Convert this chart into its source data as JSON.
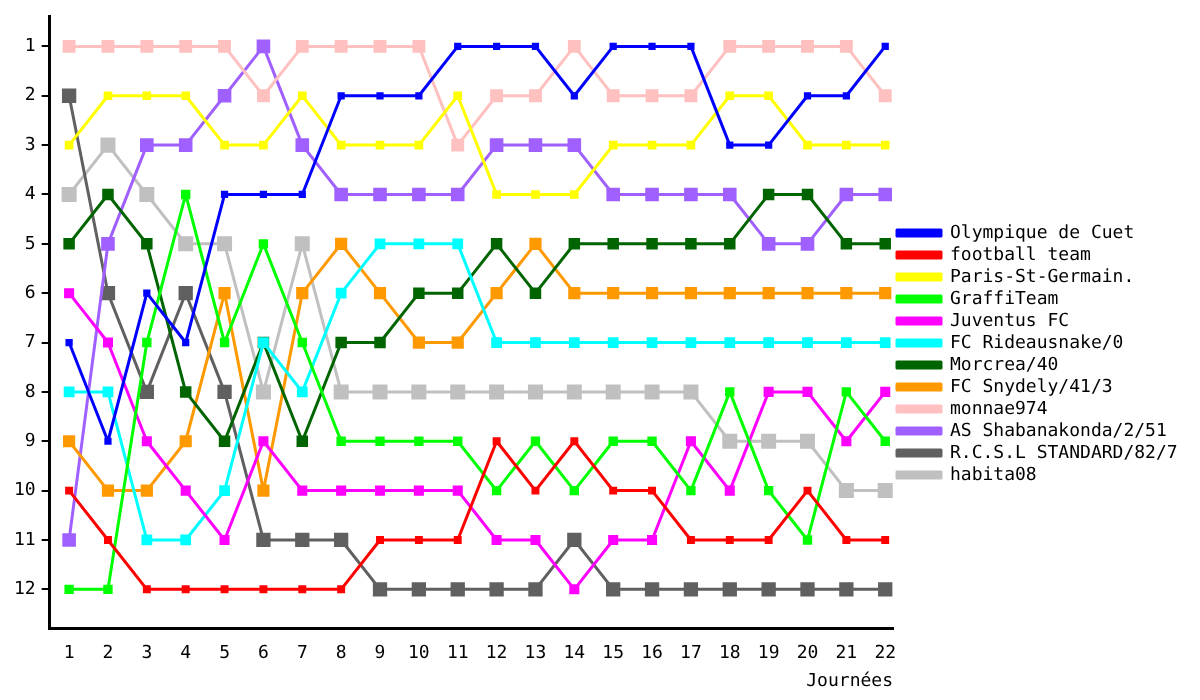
{
  "chart_data": {
    "type": "line",
    "xlabel": "Journées",
    "x": [
      1,
      2,
      3,
      4,
      5,
      6,
      7,
      8,
      9,
      10,
      11,
      12,
      13,
      14,
      15,
      16,
      17,
      18,
      19,
      20,
      21,
      22
    ],
    "xlim": [
      0.5,
      22.2
    ],
    "xticks": [
      1,
      2,
      3,
      4,
      5,
      6,
      7,
      8,
      9,
      10,
      11,
      12,
      13,
      14,
      15,
      16,
      17,
      18,
      19,
      20,
      21,
      22
    ],
    "ylim": [
      12.8,
      0.4
    ],
    "yticks": [
      1,
      2,
      3,
      4,
      5,
      6,
      7,
      8,
      9,
      10,
      11,
      12
    ],
    "grid": false,
    "legend": "right",
    "marker": "square",
    "line_style": "solid",
    "series": [
      {
        "name": "Olympique de Cuet",
        "color": "#0000ff",
        "values": [
          7,
          9,
          6,
          7,
          4,
          4,
          4,
          2,
          2,
          2,
          1,
          1,
          1,
          2,
          1,
          1,
          1,
          3,
          3,
          2,
          2,
          1
        ]
      },
      {
        "name": "football team",
        "color": "#ff0000",
        "values": [
          10,
          11,
          12,
          12,
          12,
          12,
          12,
          12,
          11,
          11,
          11,
          9,
          10,
          9,
          10,
          10,
          11,
          11,
          11,
          10,
          11,
          11
        ]
      },
      {
        "name": "Paris-St-Germain.",
        "color": "#ffff00",
        "values": [
          3,
          2,
          2,
          2,
          3,
          3,
          2,
          3,
          3,
          3,
          2,
          4,
          4,
          4,
          3,
          3,
          3,
          2,
          2,
          3,
          3,
          3
        ]
      },
      {
        "name": "GraffiTeam",
        "color": "#00ff00",
        "values": [
          12,
          12,
          7,
          4,
          7,
          5,
          7,
          9,
          9,
          9,
          9,
          10,
          9,
          10,
          9,
          9,
          10,
          8,
          10,
          11,
          8,
          9
        ]
      },
      {
        "name": "Juventus FC",
        "color": "#ff00ff",
        "values": [
          6,
          7,
          9,
          10,
          11,
          9,
          10,
          10,
          10,
          10,
          10,
          11,
          11,
          12,
          11,
          11,
          9,
          10,
          8,
          8,
          9,
          8
        ]
      },
      {
        "name": "FC Rideausnake/0",
        "color": "#00ffff",
        "values": [
          8,
          8,
          11,
          11,
          10,
          7,
          8,
          6,
          5,
          5,
          5,
          7,
          7,
          7,
          7,
          7,
          7,
          7,
          7,
          7,
          7,
          7
        ]
      },
      {
        "name": "Morcrea/40",
        "color": "#006400",
        "values": [
          5,
          4,
          5,
          8,
          9,
          7,
          9,
          7,
          7,
          6,
          6,
          5,
          6,
          5,
          5,
          5,
          5,
          5,
          4,
          4,
          5,
          5
        ]
      },
      {
        "name": "FC Snydely/41/3",
        "color": "#ff9900",
        "values": [
          9,
          10,
          10,
          9,
          6,
          10,
          6,
          5,
          6,
          7,
          7,
          6,
          5,
          6,
          6,
          6,
          6,
          6,
          6,
          6,
          6,
          6
        ]
      },
      {
        "name": "monnae974",
        "color": "#ffc0c0",
        "values": [
          1,
          1,
          1,
          1,
          1,
          2,
          1,
          1,
          1,
          1,
          3,
          2,
          2,
          1,
          2,
          2,
          2,
          1,
          1,
          1,
          1,
          2
        ]
      },
      {
        "name": "AS Shabanakonda/2/51",
        "color": "#a060ff",
        "values": [
          11,
          5,
          3,
          3,
          2,
          1,
          3,
          4,
          4,
          4,
          4,
          3,
          3,
          3,
          4,
          4,
          4,
          4,
          5,
          5,
          4,
          4
        ]
      },
      {
        "name": "R.C.S.L STANDARD/82/7",
        "color": "#606060",
        "values": [
          2,
          6,
          8,
          6,
          8,
          11,
          11,
          11,
          12,
          12,
          12,
          12,
          12,
          11,
          12,
          12,
          12,
          12,
          12,
          12,
          12,
          12
        ]
      },
      {
        "name": "habita08",
        "color": "#c0c0c0",
        "values": [
          4,
          3,
          4,
          5,
          5,
          8,
          5,
          8,
          8,
          8,
          8,
          8,
          8,
          8,
          8,
          8,
          8,
          9,
          9,
          9,
          10,
          10
        ]
      }
    ]
  }
}
